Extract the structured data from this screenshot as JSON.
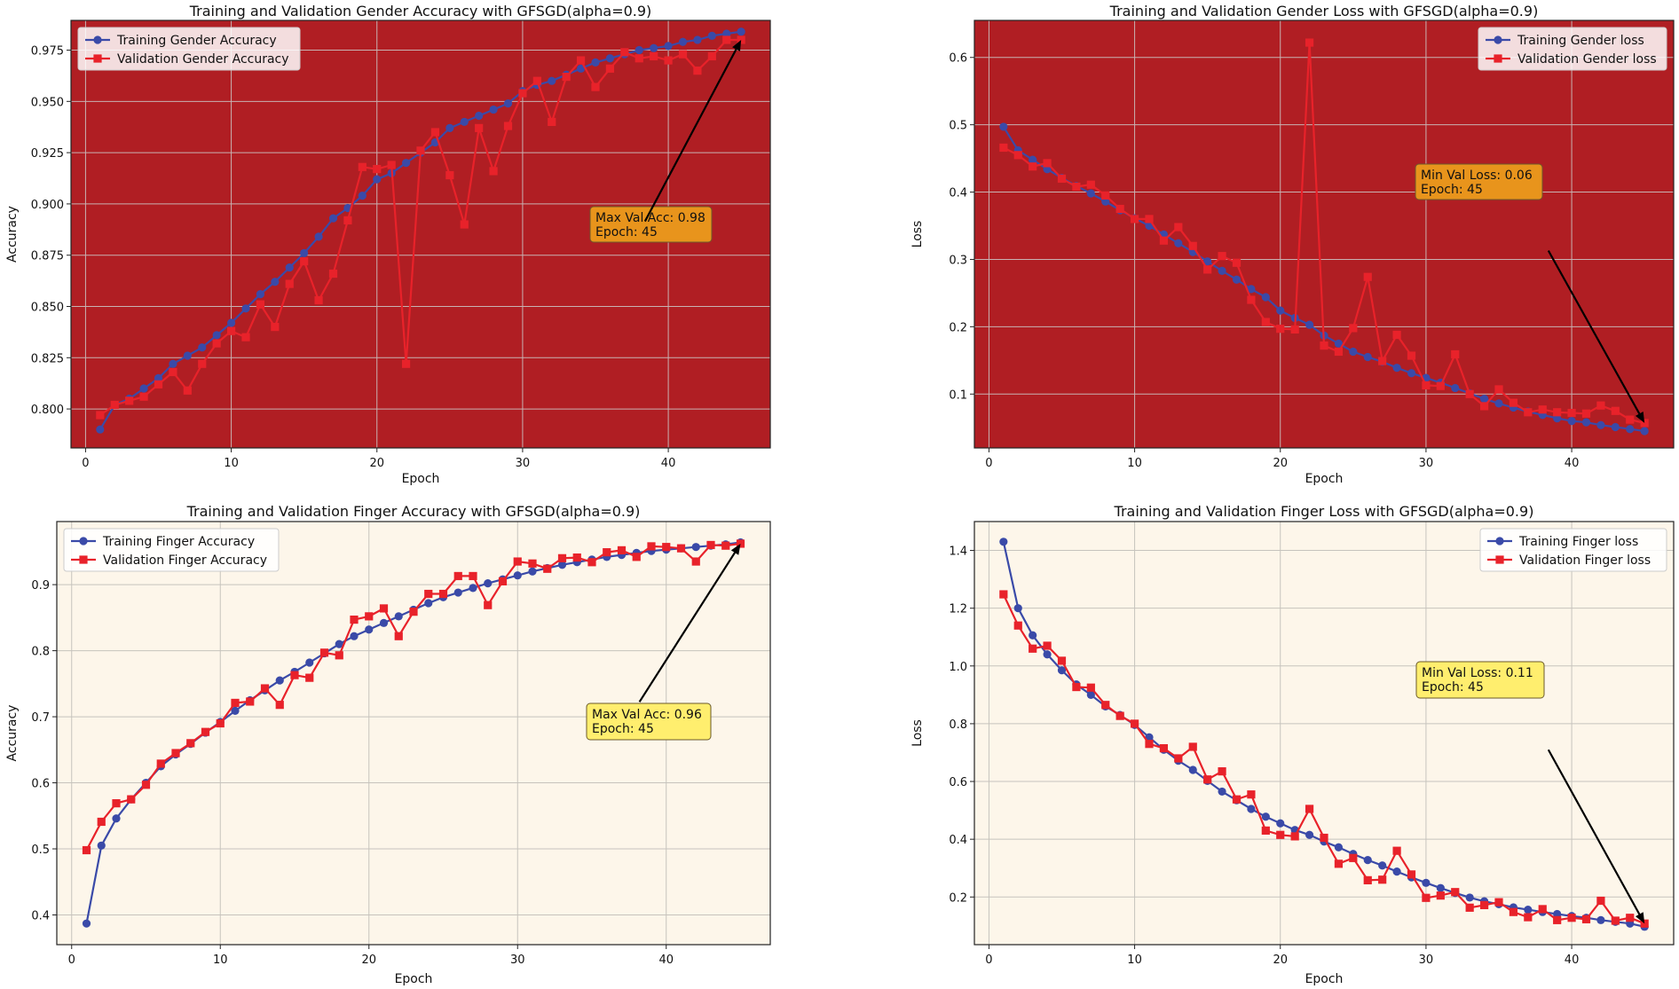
{
  "chart_data": [
    {
      "type": "line",
      "id": "gender-accuracy",
      "title": "Training and Validation Gender Accuracy with GFSGD(alpha=0.9)",
      "xlabel": "Epoch",
      "ylabel": "Accuracy",
      "xlim": [
        -1,
        47
      ],
      "ylim": [
        0.781,
        0.9895
      ],
      "xticks": [
        0,
        10,
        20,
        30,
        40
      ],
      "yticks": [
        0.8,
        0.825,
        0.85,
        0.875,
        0.9,
        0.925,
        0.95,
        0.975
      ],
      "ytick_labels": [
        "0.800",
        "0.825",
        "0.850",
        "0.875",
        "0.900",
        "0.925",
        "0.950",
        "0.975"
      ],
      "xtick_labels": [
        "0",
        "10",
        "20",
        "30",
        "40"
      ],
      "grid": true,
      "background": "#b01e23",
      "legend_position": "top-left",
      "x": [
        1,
        2,
        3,
        4,
        5,
        6,
        7,
        8,
        9,
        10,
        11,
        12,
        13,
        14,
        15,
        16,
        17,
        18,
        19,
        20,
        21,
        22,
        23,
        24,
        25,
        26,
        27,
        28,
        29,
        30,
        31,
        32,
        33,
        34,
        35,
        36,
        37,
        38,
        39,
        40,
        41,
        42,
        43,
        44,
        45
      ],
      "series": [
        {
          "name": "Training Gender Accuracy",
          "color": "#3a4aa8",
          "marker": "circle",
          "values": [
            0.79,
            0.802,
            0.805,
            0.81,
            0.815,
            0.822,
            0.826,
            0.83,
            0.836,
            0.842,
            0.849,
            0.856,
            0.862,
            0.869,
            0.876,
            0.884,
            0.893,
            0.898,
            0.904,
            0.912,
            0.915,
            0.92,
            0.925,
            0.93,
            0.937,
            0.94,
            0.943,
            0.946,
            0.949,
            0.955,
            0.958,
            0.96,
            0.963,
            0.966,
            0.969,
            0.971,
            0.973,
            0.975,
            0.976,
            0.977,
            0.979,
            0.98,
            0.982,
            0.983,
            0.984
          ]
        },
        {
          "name": "Validation Gender Accuracy",
          "color": "#e8222a",
          "marker": "square",
          "values": [
            0.797,
            0.802,
            0.804,
            0.806,
            0.812,
            0.818,
            0.809,
            0.822,
            0.832,
            0.838,
            0.835,
            0.851,
            0.84,
            0.861,
            0.872,
            0.853,
            0.866,
            0.892,
            0.918,
            0.917,
            0.919,
            0.822,
            0.926,
            0.935,
            0.914,
            0.89,
            0.937,
            0.916,
            0.938,
            0.954,
            0.96,
            0.94,
            0.962,
            0.97,
            0.957,
            0.966,
            0.974,
            0.971,
            0.972,
            0.97,
            0.973,
            0.965,
            0.972,
            0.98,
            0.98
          ]
        }
      ],
      "annotation": {
        "lines": [
          "Max Val Acc: 0.98",
          "Epoch: 45"
        ],
        "arrow_to": [
          45,
          0.98
        ],
        "text_anchor": [
          38.4,
          0.8915
        ],
        "box_color": "#e8941c"
      }
    },
    {
      "type": "line",
      "id": "gender-loss",
      "title": "Training and Validation Gender Loss with GFSGD(alpha=0.9)",
      "xlabel": "Epoch",
      "ylabel": "Loss",
      "xlim": [
        -1,
        47
      ],
      "ylim": [
        0.02,
        0.655
      ],
      "xticks": [
        0,
        10,
        20,
        30,
        40
      ],
      "yticks": [
        0.1,
        0.2,
        0.3,
        0.4,
        0.5,
        0.6
      ],
      "ytick_labels": [
        "0.1",
        "0.2",
        "0.3",
        "0.4",
        "0.5",
        "0.6"
      ],
      "xtick_labels": [
        "0",
        "10",
        "20",
        "30",
        "40"
      ],
      "grid": true,
      "background": "#b01e23",
      "legend_position": "top-right",
      "x": [
        1,
        2,
        3,
        4,
        5,
        6,
        7,
        8,
        9,
        10,
        11,
        12,
        13,
        14,
        15,
        16,
        17,
        18,
        19,
        20,
        21,
        22,
        23,
        24,
        25,
        26,
        27,
        28,
        29,
        30,
        31,
        32,
        33,
        34,
        35,
        36,
        37,
        38,
        39,
        40,
        41,
        42,
        43,
        44,
        45
      ],
      "series": [
        {
          "name": "Training Gender loss",
          "color": "#3a4aa8",
          "marker": "circle",
          "values": [
            0.497,
            0.462,
            0.448,
            0.434,
            0.421,
            0.409,
            0.398,
            0.386,
            0.373,
            0.361,
            0.35,
            0.337,
            0.324,
            0.311,
            0.297,
            0.283,
            0.27,
            0.256,
            0.244,
            0.224,
            0.213,
            0.203,
            0.187,
            0.175,
            0.163,
            0.155,
            0.148,
            0.139,
            0.131,
            0.124,
            0.117,
            0.109,
            0.101,
            0.093,
            0.086,
            0.08,
            0.074,
            0.069,
            0.064,
            0.06,
            0.058,
            0.054,
            0.051,
            0.048,
            0.045
          ]
        },
        {
          "name": "Validation Gender loss",
          "color": "#e8222a",
          "marker": "square",
          "values": [
            0.466,
            0.455,
            0.438,
            0.443,
            0.42,
            0.408,
            0.411,
            0.395,
            0.375,
            0.36,
            0.36,
            0.328,
            0.348,
            0.32,
            0.285,
            0.305,
            0.295,
            0.24,
            0.207,
            0.197,
            0.196,
            0.622,
            0.172,
            0.163,
            0.198,
            0.274,
            0.149,
            0.188,
            0.157,
            0.113,
            0.112,
            0.159,
            0.1,
            0.082,
            0.107,
            0.087,
            0.073,
            0.077,
            0.073,
            0.072,
            0.071,
            0.083,
            0.075,
            0.062,
            0.057
          ]
        }
      ],
      "annotation": {
        "lines": [
          "Min Val Loss: 0.06",
          "Epoch: 45"
        ],
        "arrow_to": [
          45,
          0.057
        ],
        "text_anchor": [
          38.4,
          0.313
        ],
        "box_color": "#e8941c"
      }
    },
    {
      "type": "line",
      "id": "finger-accuracy",
      "title": "Training and Validation Finger Accuracy with GFSGD(alpha=0.9)",
      "xlabel": "Epoch",
      "ylabel": "Accuracy",
      "xlim": [
        -1,
        47
      ],
      "ylim": [
        0.355,
        0.9955
      ],
      "xticks": [
        0,
        10,
        20,
        30,
        40
      ],
      "yticks": [
        0.4,
        0.5,
        0.6,
        0.7,
        0.8,
        0.9
      ],
      "ytick_labels": [
        "0.4",
        "0.5",
        "0.6",
        "0.7",
        "0.8",
        "0.9"
      ],
      "xtick_labels": [
        "0",
        "10",
        "20",
        "30",
        "40"
      ],
      "grid": true,
      "background": "#fdf6ea",
      "legend_position": "top-left",
      "x": [
        1,
        2,
        3,
        4,
        5,
        6,
        7,
        8,
        9,
        10,
        11,
        12,
        13,
        14,
        15,
        16,
        17,
        18,
        19,
        20,
        21,
        22,
        23,
        24,
        25,
        26,
        27,
        28,
        29,
        30,
        31,
        32,
        33,
        34,
        35,
        36,
        37,
        38,
        39,
        40,
        41,
        42,
        43,
        44,
        45
      ],
      "series": [
        {
          "name": "Training Finger Accuracy",
          "color": "#3a4aa8",
          "marker": "circle",
          "values": [
            0.387,
            0.505,
            0.546,
            0.575,
            0.6,
            0.625,
            0.643,
            0.659,
            0.676,
            0.692,
            0.709,
            0.725,
            0.74,
            0.755,
            0.768,
            0.782,
            0.796,
            0.81,
            0.822,
            0.832,
            0.842,
            0.852,
            0.862,
            0.872,
            0.881,
            0.888,
            0.895,
            0.902,
            0.908,
            0.914,
            0.92,
            0.925,
            0.93,
            0.934,
            0.938,
            0.942,
            0.945,
            0.948,
            0.951,
            0.953,
            0.955,
            0.957,
            0.959,
            0.961,
            0.964
          ]
        },
        {
          "name": "Validation Finger Accuracy",
          "color": "#e8222a",
          "marker": "square",
          "values": [
            0.498,
            0.541,
            0.569,
            0.575,
            0.597,
            0.629,
            0.645,
            0.66,
            0.677,
            0.69,
            0.721,
            0.723,
            0.743,
            0.718,
            0.763,
            0.759,
            0.797,
            0.793,
            0.847,
            0.852,
            0.864,
            0.822,
            0.859,
            0.886,
            0.886,
            0.913,
            0.913,
            0.869,
            0.905,
            0.935,
            0.932,
            0.924,
            0.94,
            0.941,
            0.934,
            0.949,
            0.952,
            0.942,
            0.958,
            0.957,
            0.955,
            0.935,
            0.96,
            0.959,
            0.962
          ]
        }
      ],
      "annotation": {
        "lines": [
          "Max Val Acc: 0.96",
          "Epoch: 45"
        ],
        "arrow_to": [
          45,
          0.962
        ],
        "text_anchor": [
          38.2,
          0.7225
        ],
        "box_color": "#ffee6e"
      }
    },
    {
      "type": "line",
      "id": "finger-loss",
      "title": "Training and Validation Finger Loss with GFSGD(alpha=0.9)",
      "xlabel": "Epoch",
      "ylabel": "Loss",
      "xlim": [
        -1,
        47
      ],
      "ylim": [
        0.035,
        1.5
      ],
      "xticks": [
        0,
        10,
        20,
        30,
        40
      ],
      "yticks": [
        0.2,
        0.4,
        0.6,
        0.8,
        1.0,
        1.2,
        1.4
      ],
      "ytick_labels": [
        "0.2",
        "0.4",
        "0.6",
        "0.8",
        "1.0",
        "1.2",
        "1.4"
      ],
      "xtick_labels": [
        "0",
        "10",
        "20",
        "30",
        "40"
      ],
      "grid": true,
      "background": "#fdf6ea",
      "legend_position": "top-right",
      "x": [
        1,
        2,
        3,
        4,
        5,
        6,
        7,
        8,
        9,
        10,
        11,
        12,
        13,
        14,
        15,
        16,
        17,
        18,
        19,
        20,
        21,
        22,
        23,
        24,
        25,
        26,
        27,
        28,
        29,
        30,
        31,
        32,
        33,
        34,
        35,
        36,
        37,
        38,
        39,
        40,
        41,
        42,
        43,
        44,
        45
      ],
      "series": [
        {
          "name": "Training Finger loss",
          "color": "#3a4aa8",
          "marker": "circle",
          "values": [
            1.43,
            1.2,
            1.106,
            1.04,
            0.985,
            0.936,
            0.9,
            0.86,
            0.83,
            0.796,
            0.753,
            0.71,
            0.672,
            0.64,
            0.602,
            0.565,
            0.535,
            0.505,
            0.478,
            0.455,
            0.432,
            0.415,
            0.392,
            0.372,
            0.349,
            0.328,
            0.309,
            0.288,
            0.268,
            0.249,
            0.231,
            0.214,
            0.198,
            0.185,
            0.175,
            0.164,
            0.156,
            0.148,
            0.141,
            0.134,
            0.128,
            0.12,
            0.114,
            0.108,
            0.097
          ]
        },
        {
          "name": "Validation Finger loss",
          "color": "#e8222a",
          "marker": "square",
          "values": [
            1.248,
            1.14,
            1.06,
            1.07,
            1.018,
            0.927,
            0.925,
            0.865,
            0.827,
            0.8,
            0.73,
            0.715,
            0.68,
            0.72,
            0.607,
            0.635,
            0.538,
            0.555,
            0.43,
            0.415,
            0.41,
            0.505,
            0.405,
            0.315,
            0.335,
            0.258,
            0.26,
            0.36,
            0.278,
            0.197,
            0.205,
            0.217,
            0.163,
            0.172,
            0.182,
            0.148,
            0.13,
            0.158,
            0.12,
            0.128,
            0.123,
            0.187,
            0.118,
            0.128,
            0.108
          ]
        }
      ],
      "annotation": {
        "lines": [
          "Min Val Loss: 0.11",
          "Epoch: 45"
        ],
        "arrow_to": [
          45,
          0.108
        ],
        "text_anchor": [
          38.4,
          0.71
        ],
        "box_color": "#ffee6e"
      }
    }
  ]
}
